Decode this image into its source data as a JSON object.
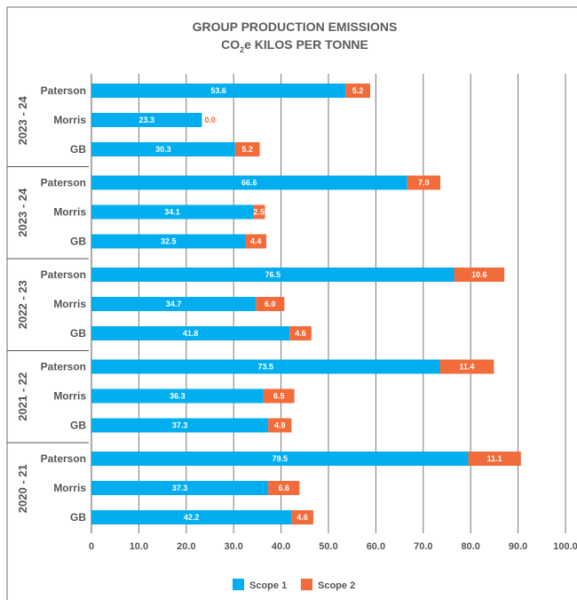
{
  "chart_data": {
    "type": "bar",
    "orientation": "horizontal",
    "stacked": true,
    "title": "GROUP PRODUCTION EMISSIONS",
    "subtitle_prefix": "CO",
    "subtitle_sub": "2",
    "subtitle_suffix": "e KILOS PER TONNE",
    "xlim": [
      0,
      100
    ],
    "x_ticks": [
      "0",
      "10.0",
      "20.0",
      "30.0",
      "40.0",
      "50.0",
      "60.0",
      "70.0",
      "80.0",
      "90.0",
      "100.0"
    ],
    "grid": true,
    "legend_position": "bottom",
    "colors": {
      "scope1": "#00aeef",
      "scope2": "#f26b3a"
    },
    "groups": [
      {
        "label": "2023 - 24",
        "bars": [
          {
            "name": "Paterson",
            "scope1": 53.6,
            "scope2": 5.2
          },
          {
            "name": "Morris",
            "scope1": 23.3,
            "scope2": 0.0
          },
          {
            "name": "GB",
            "scope1": 30.3,
            "scope2": 5.2
          }
        ]
      },
      {
        "label": "2023 - 24",
        "bars": [
          {
            "name": "Paterson",
            "scope1": 66.6,
            "scope2": 7.0
          },
          {
            "name": "Morris",
            "scope1": 34.1,
            "scope2": 2.5
          },
          {
            "name": "GB",
            "scope1": 32.5,
            "scope2": 4.4
          }
        ]
      },
      {
        "label": "2022 - 23",
        "bars": [
          {
            "name": "Paterson",
            "scope1": 76.5,
            "scope2": 10.6
          },
          {
            "name": "Morris",
            "scope1": 34.7,
            "scope2": 6.0
          },
          {
            "name": "GB",
            "scope1": 41.8,
            "scope2": 4.6
          }
        ]
      },
      {
        "label": "2021 - 22",
        "bars": [
          {
            "name": "Paterson",
            "scope1": 73.5,
            "scope2": 11.4
          },
          {
            "name": "Morris",
            "scope1": 36.3,
            "scope2": 6.5
          },
          {
            "name": "GB",
            "scope1": 37.3,
            "scope2": 4.9
          }
        ]
      },
      {
        "label": "2020 - 21",
        "bars": [
          {
            "name": "Paterson",
            "scope1": 79.5,
            "scope2": 11.1
          },
          {
            "name": "Morris",
            "scope1": 37.3,
            "scope2": 6.6
          },
          {
            "name": "GB",
            "scope1": 42.2,
            "scope2": 4.6
          }
        ]
      }
    ],
    "series": [
      {
        "name": "Scope 1",
        "key": "scope1"
      },
      {
        "name": "Scope 2",
        "key": "scope2"
      }
    ]
  }
}
